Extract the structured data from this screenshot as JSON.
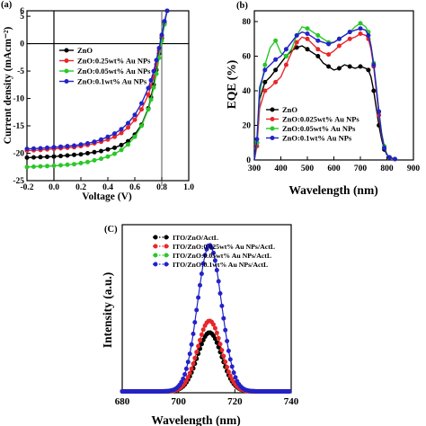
{
  "chart_data": [
    {
      "panel": "(a)",
      "type": "line",
      "xlabel": "Voltage (V)",
      "ylabel": "Current density (mAcm⁻²)",
      "xlim": [
        -0.2,
        1.0
      ],
      "ylim": [
        -25,
        6
      ],
      "xticks": [
        "-0.2",
        "0.0",
        "0.2",
        "0.4",
        "0.6",
        "0.8",
        "1.0"
      ],
      "yticks": [
        "-25",
        "-20",
        "-15",
        "-10",
        "-5",
        "0",
        "5"
      ],
      "yticks_top": "6",
      "legend_position": "left-middle",
      "vertical_marker_x": 0.8,
      "series": [
        {
          "name": "ZnO",
          "color": "#000000",
          "jsc": 20.8,
          "voc": 0.795,
          "x": [
            -0.2,
            -0.15,
            -0.1,
            -0.05,
            0,
            0.05,
            0.1,
            0.15,
            0.2,
            0.25,
            0.3,
            0.35,
            0.4,
            0.45,
            0.5,
            0.55,
            0.6,
            0.65,
            0.7,
            0.72,
            0.74,
            0.76,
            0.78,
            0.8,
            0.82,
            0.84
          ],
          "y": [
            -20.8,
            -20.75,
            -20.7,
            -20.65,
            -20.6,
            -20.5,
            -20.4,
            -20.3,
            -20.2,
            -20.0,
            -19.8,
            -19.6,
            -19.3,
            -19.0,
            -18.5,
            -17.8,
            -16.6,
            -14.8,
            -11.8,
            -9.8,
            -7.5,
            -4.8,
            -1.8,
            1.0,
            3.8,
            6.0
          ]
        },
        {
          "name": "ZnO:0.25wt% Au NPs",
          "color": "#e8262a",
          "jsc": 19.5,
          "voc": 0.8,
          "x": [
            -0.2,
            -0.15,
            -0.1,
            -0.05,
            0,
            0.05,
            0.1,
            0.15,
            0.2,
            0.25,
            0.3,
            0.35,
            0.4,
            0.45,
            0.5,
            0.55,
            0.6,
            0.65,
            0.7,
            0.72,
            0.74,
            0.76,
            0.78,
            0.8,
            0.82,
            0.84
          ],
          "y": [
            -19.5,
            -19.45,
            -19.4,
            -19.3,
            -19.2,
            -19.1,
            -19.0,
            -18.9,
            -18.7,
            -18.5,
            -18.2,
            -17.9,
            -17.5,
            -17.0,
            -16.3,
            -15.3,
            -13.9,
            -12.0,
            -9.3,
            -7.8,
            -6.0,
            -3.8,
            -1.3,
            1.3,
            4.0,
            6.0
          ]
        },
        {
          "name": "ZnO:0.05wt% Au NPs",
          "color": "#28c828",
          "jsc": 22.5,
          "voc": 0.805,
          "x": [
            -0.2,
            -0.15,
            -0.1,
            -0.05,
            0,
            0.05,
            0.1,
            0.15,
            0.2,
            0.25,
            0.3,
            0.35,
            0.4,
            0.45,
            0.5,
            0.55,
            0.6,
            0.65,
            0.7,
            0.72,
            0.74,
            0.76,
            0.78,
            0.8,
            0.82,
            0.84
          ],
          "y": [
            -22.5,
            -22.45,
            -22.4,
            -22.35,
            -22.3,
            -22.2,
            -22.1,
            -22.0,
            -21.8,
            -21.6,
            -21.3,
            -21.0,
            -20.6,
            -20.1,
            -19.4,
            -18.4,
            -17.0,
            -15.0,
            -12.0,
            -10.2,
            -8.0,
            -5.5,
            -2.6,
            0.5,
            3.5,
            6.0
          ]
        },
        {
          "name": "ZnO:0.1wt% Au NPs",
          "color": "#2222c8",
          "jsc": 19.2,
          "voc": 0.8,
          "x": [
            -0.2,
            -0.15,
            -0.1,
            -0.05,
            0,
            0.05,
            0.1,
            0.15,
            0.2,
            0.25,
            0.3,
            0.35,
            0.4,
            0.45,
            0.5,
            0.55,
            0.6,
            0.65,
            0.7,
            0.72,
            0.74,
            0.76,
            0.78,
            0.8,
            0.82,
            0.84
          ],
          "y": [
            -19.2,
            -19.15,
            -19.1,
            -19.0,
            -18.9,
            -18.8,
            -18.7,
            -18.6,
            -18.4,
            -18.2,
            -17.9,
            -17.5,
            -17.0,
            -16.4,
            -15.6,
            -14.5,
            -13.0,
            -10.9,
            -8.1,
            -6.7,
            -5.0,
            -3.0,
            -0.8,
            1.6,
            4.1,
            6.0
          ]
        }
      ]
    },
    {
      "panel": "(b)",
      "type": "line",
      "xlabel": "Wavelength (nm)",
      "ylabel": "EQE (%)",
      "xlim": [
        300,
        900
      ],
      "ylim": [
        0,
        80
      ],
      "xticks": [
        "300",
        "400",
        "500",
        "600",
        "700",
        "800",
        "900"
      ],
      "yticks": [
        "0",
        "20",
        "40",
        "60",
        "80"
      ],
      "legend_position": "bottom-left",
      "series": [
        {
          "name": "ZnO",
          "color": "#000000",
          "x": [
            300,
            310,
            320,
            340,
            360,
            380,
            400,
            420,
            440,
            460,
            480,
            500,
            520,
            540,
            560,
            580,
            600,
            620,
            640,
            660,
            680,
            700,
            720,
            730,
            740,
            750,
            760,
            770,
            780,
            790,
            800,
            810,
            820,
            830,
            840
          ],
          "y": [
            0,
            10,
            35,
            45,
            48,
            52,
            56,
            60,
            63,
            65,
            66,
            64,
            62,
            60,
            56,
            54,
            52,
            53,
            55,
            54,
            53,
            54,
            53,
            52,
            48,
            40,
            30,
            20,
            12,
            6,
            3,
            1.5,
            1,
            0.5,
            0
          ]
        },
        {
          "name": "ZnO:0.025wt% Au NPs",
          "color": "#e8262a",
          "x": [
            300,
            310,
            320,
            340,
            360,
            380,
            400,
            420,
            440,
            460,
            480,
            500,
            520,
            540,
            560,
            580,
            600,
            620,
            640,
            660,
            680,
            700,
            720,
            730,
            740,
            750,
            760,
            770,
            780,
            790,
            800,
            810,
            820,
            830,
            840
          ],
          "y": [
            0,
            8,
            30,
            40,
            42,
            45,
            48,
            55,
            62,
            68,
            71,
            70,
            67,
            64,
            62,
            61,
            63,
            66,
            68,
            70,
            71,
            73,
            72,
            70,
            64,
            54,
            40,
            26,
            14,
            7,
            3,
            1.5,
            1,
            0.5,
            0
          ]
        },
        {
          "name": "ZnO:0.05wt% Au NPs",
          "color": "#28c828",
          "x": [
            300,
            310,
            320,
            340,
            360,
            380,
            400,
            420,
            440,
            460,
            480,
            500,
            520,
            540,
            560,
            580,
            600,
            620,
            640,
            660,
            680,
            700,
            720,
            730,
            740,
            750,
            760,
            770,
            780,
            790,
            800,
            810,
            820,
            830,
            840
          ],
          "y": [
            0,
            10,
            38,
            55,
            65,
            69,
            62,
            60,
            64,
            72,
            77,
            76,
            74,
            72,
            70,
            68,
            68,
            70,
            72,
            74,
            77,
            79,
            77,
            74,
            66,
            56,
            42,
            28,
            16,
            8,
            3.5,
            1.5,
            1,
            0.5,
            0
          ]
        },
        {
          "name": "ZnO:0.1wt% Au NPs",
          "color": "#2222c8",
          "x": [
            300,
            310,
            320,
            340,
            360,
            380,
            400,
            420,
            440,
            460,
            480,
            500,
            520,
            540,
            560,
            580,
            600,
            620,
            640,
            660,
            680,
            700,
            720,
            730,
            740,
            750,
            760,
            770,
            780,
            790,
            800,
            810,
            820,
            830,
            840
          ],
          "y": [
            0,
            12,
            42,
            52,
            55,
            58,
            60,
            64,
            68,
            72,
            74,
            73,
            71,
            69,
            68,
            67,
            68,
            70,
            72,
            74,
            75,
            76,
            75,
            72,
            66,
            55,
            42,
            28,
            15,
            7,
            3,
            1.5,
            1,
            0.5,
            0
          ]
        }
      ]
    },
    {
      "panel": "(C)",
      "type": "line",
      "xlabel": "Wavelength (nm)",
      "ylabel": "Intensity (a.u.)",
      "xlim": [
        680,
        740
      ],
      "xticks": [
        "680",
        "700",
        "720",
        "740"
      ],
      "legend_position": "top",
      "series": [
        {
          "name": "ITO/ZnO/ActL",
          "color": "#000000",
          "peak_wavelength": 711,
          "peak_intensity": 0.35,
          "fwhm": 10
        },
        {
          "name": "ITO/ZnO:0.025wt% Au NPs/ActL",
          "color": "#e8262a",
          "peak_wavelength": 711,
          "peak_intensity": 0.42,
          "fwhm": 10
        },
        {
          "name": "ITO/ZnO:0.05wt% Au NPs/ActL",
          "color": "#28c828",
          "peak_wavelength": 711,
          "peak_intensity": 0.35,
          "fwhm": 10
        },
        {
          "name": "ITO/ZnO:0.1wt% Au NPs/ActL",
          "color": "#2222c8",
          "peak_wavelength": 711,
          "peak_intensity": 0.87,
          "fwhm": 10
        }
      ]
    }
  ]
}
